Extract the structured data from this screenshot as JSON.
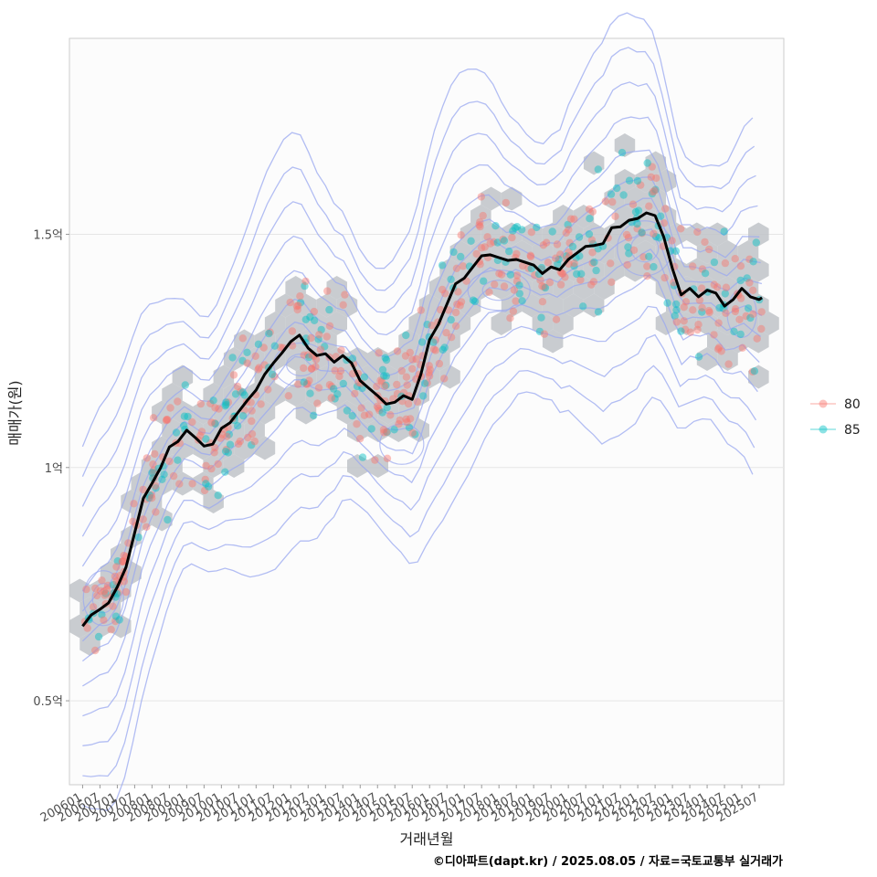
{
  "chart_data": {
    "type": "scatter",
    "xlabel": "거래년월",
    "ylabel": "매매가(원)",
    "caption": "©디아파트(dapt.kr) / 2025.08.05 / 자료=국토교통부 실거래가",
    "x_ticks": [
      "200601",
      "200607",
      "200701",
      "200707",
      "200801",
      "200807",
      "200901",
      "200907",
      "201001",
      "201007",
      "201101",
      "201107",
      "201201",
      "201207",
      "201301",
      "201307",
      "201401",
      "201407",
      "201501",
      "201507",
      "201601",
      "201607",
      "201701",
      "201707",
      "201801",
      "201807",
      "201901",
      "201907",
      "202001",
      "202007",
      "202101",
      "202107",
      "202201",
      "202207",
      "202301",
      "202307",
      "202401",
      "202407",
      "202501",
      "202507"
    ],
    "y_ticks": [
      {
        "value": 0.5,
        "label": "0.5억"
      },
      {
        "value": 1.0,
        "label": "1억"
      },
      {
        "value": 1.5,
        "label": "1.5억"
      }
    ],
    "xlim": [
      2005.62,
      2026.21
    ],
    "ylim": [
      0.32,
      1.92
    ],
    "grid": true,
    "legend": {
      "position": "right",
      "entries": [
        {
          "name": "80",
          "color": "#F8766D"
        },
        {
          "name": "85",
          "color": "#00BFC4"
        }
      ]
    },
    "colors": {
      "hex": "#bfc3c8",
      "contour": "#9aa8f0",
      "trend": "#000000"
    },
    "trend_line": {
      "name": "moving average",
      "x": [
        2006.0,
        2006.25,
        2006.5,
        2006.75,
        2007.0,
        2007.25,
        2007.5,
        2007.75,
        2008.0,
        2008.25,
        2008.5,
        2008.75,
        2009.0,
        2009.25,
        2009.5,
        2009.75,
        2010.0,
        2010.25,
        2010.5,
        2010.75,
        2011.0,
        2011.25,
        2011.5,
        2011.75,
        2012.0,
        2012.25,
        2012.5,
        2012.75,
        2013.0,
        2013.25,
        2013.5,
        2013.75,
        2014.0,
        2014.25,
        2014.5,
        2014.75,
        2015.0,
        2015.25,
        2015.5,
        2015.75,
        2016.0,
        2016.25,
        2016.5,
        2016.75,
        2017.0,
        2017.25,
        2017.5,
        2017.75,
        2018.0,
        2018.25,
        2018.5,
        2018.75,
        2019.0,
        2019.25,
        2019.5,
        2019.75,
        2020.0,
        2020.25,
        2020.5,
        2020.75,
        2021.0,
        2021.25,
        2021.5,
        2021.75,
        2022.0,
        2022.25,
        2022.5,
        2022.75,
        2023.0,
        2023.25,
        2023.5,
        2023.75,
        2024.0,
        2024.25,
        2024.5,
        2024.75,
        2025.0,
        2025.25,
        2025.5,
        2025.58
      ],
      "values": [
        0.66,
        0.68,
        0.7,
        0.71,
        0.74,
        0.79,
        0.86,
        0.93,
        0.97,
        1.0,
        1.04,
        1.06,
        1.08,
        1.06,
        1.05,
        1.05,
        1.08,
        1.1,
        1.12,
        1.14,
        1.17,
        1.2,
        1.22,
        1.25,
        1.27,
        1.28,
        1.26,
        1.24,
        1.24,
        1.23,
        1.24,
        1.22,
        1.19,
        1.17,
        1.15,
        1.14,
        1.14,
        1.15,
        1.15,
        1.2,
        1.27,
        1.31,
        1.35,
        1.39,
        1.41,
        1.43,
        1.45,
        1.46,
        1.45,
        1.44,
        1.45,
        1.44,
        1.43,
        1.42,
        1.43,
        1.42,
        1.45,
        1.46,
        1.47,
        1.48,
        1.48,
        1.51,
        1.52,
        1.53,
        1.53,
        1.55,
        1.54,
        1.49,
        1.43,
        1.37,
        1.38,
        1.37,
        1.38,
        1.37,
        1.35,
        1.36,
        1.38,
        1.37,
        1.36,
        1.36
      ]
    }
  }
}
